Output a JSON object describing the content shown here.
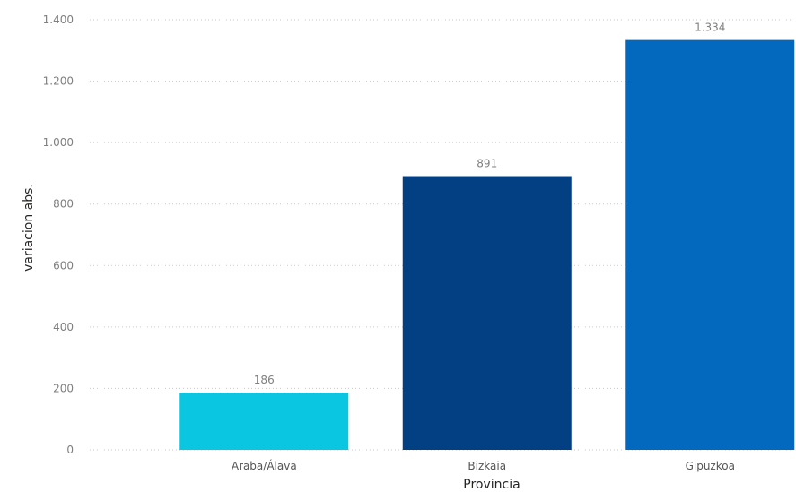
{
  "chart_data": {
    "type": "bar",
    "categories": [
      "Araba/Álava",
      "Bizkaia",
      "Gipuzkoa"
    ],
    "values": [
      186,
      891,
      1334
    ],
    "value_labels": [
      "186",
      "891",
      "1.334"
    ],
    "bar_colors": [
      "#0bc6e1",
      "#023f83",
      "#0369be"
    ],
    "xlabel": "Provincia",
    "ylabel": "variacion abs.",
    "ylim": [
      0,
      1400
    ],
    "yticks": [
      0,
      200,
      400,
      600,
      800,
      1000,
      1200,
      1400
    ],
    "ytick_labels": [
      "0",
      "200",
      "400",
      "600",
      "800",
      "1.000",
      "1.200",
      "1.400"
    ],
    "grid": true,
    "legend": "none"
  }
}
